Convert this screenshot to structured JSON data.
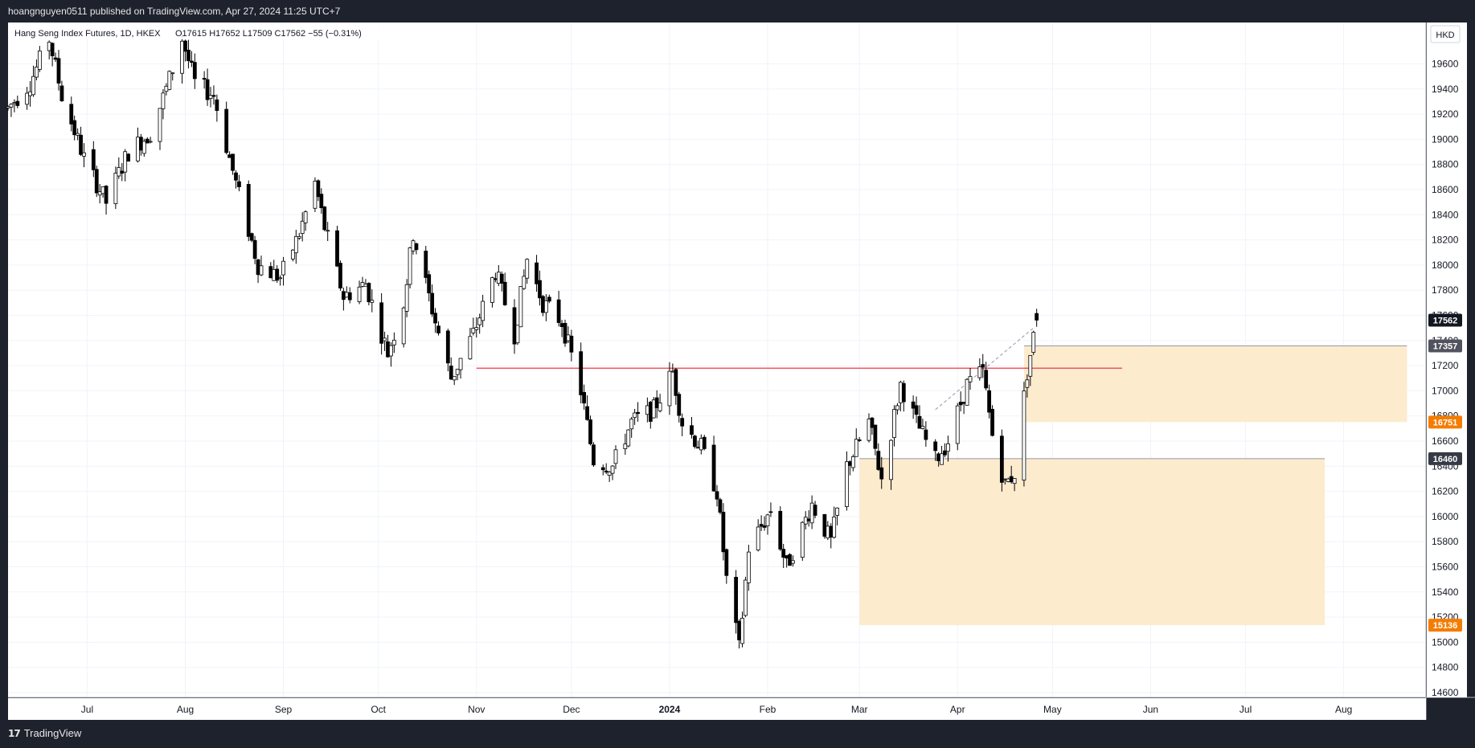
{
  "header": {
    "published_text": "hoangnguyen0511 published on TradingView.com, Apr 27, 2024 11:25 UTC+7"
  },
  "footer": {
    "brand_icon": "tradingview-logo-icon",
    "brand_text": "TradingView"
  },
  "legend": {
    "symbol": "Hang Seng Index Futures, 1D, HKEX",
    "ohlc": "O17615  H17652  L17509  C17562  −55 (−0.31%)"
  },
  "currency": "HKD",
  "chart_data": {
    "type": "candlestick",
    "title": "Hang Seng Index Futures, 1D, HKEX",
    "ylim": [
      14600,
      19800
    ],
    "yticks": [
      14600,
      14800,
      15000,
      15200,
      15400,
      15600,
      15800,
      16000,
      16200,
      16400,
      16600,
      16800,
      17000,
      17200,
      17400,
      17600,
      17800,
      18000,
      18200,
      18400,
      18600,
      18800,
      19000,
      19200,
      19400,
      19600
    ],
    "xticks": [
      {
        "label": "Jul",
        "bold": false
      },
      {
        "label": "Aug",
        "bold": false
      },
      {
        "label": "Sep",
        "bold": false
      },
      {
        "label": "Oct",
        "bold": false
      },
      {
        "label": "Nov",
        "bold": false
      },
      {
        "label": "Dec",
        "bold": false
      },
      {
        "label": "2024",
        "bold": true
      },
      {
        "label": "Feb",
        "bold": false
      },
      {
        "label": "Mar",
        "bold": false
      },
      {
        "label": "Apr",
        "bold": false
      },
      {
        "label": "May",
        "bold": false
      },
      {
        "label": "Jun",
        "bold": false
      },
      {
        "label": "Jul",
        "bold": false
      },
      {
        "label": "Aug",
        "bold": false
      }
    ],
    "xtick_dates": [
      "2023-07-01",
      "2023-08-01",
      "2023-09-01",
      "2023-10-01",
      "2023-11-01",
      "2023-12-01",
      "2024-01-01",
      "2024-02-01",
      "2024-03-01",
      "2024-04-01",
      "2024-05-01",
      "2024-06-01",
      "2024-07-01",
      "2024-08-01"
    ],
    "date_range": [
      "2023-06-06",
      "2024-08-27"
    ],
    "price_path": [
      [
        "2023-06-06",
        19250
      ],
      [
        "2023-06-13",
        19450
      ],
      [
        "2023-06-19",
        19800
      ],
      [
        "2023-06-23",
        19350
      ],
      [
        "2023-06-30",
        18850
      ],
      [
        "2023-07-07",
        18500
      ],
      [
        "2023-07-14",
        18900
      ],
      [
        "2023-07-21",
        19050
      ],
      [
        "2023-07-26",
        19400
      ],
      [
        "2023-07-31",
        19800
      ],
      [
        "2023-08-04",
        19450
      ],
      [
        "2023-08-10",
        19350
      ],
      [
        "2023-08-17",
        18650
      ],
      [
        "2023-08-24",
        18000
      ],
      [
        "2023-08-31",
        17900
      ],
      [
        "2023-09-06",
        18250
      ],
      [
        "2023-09-11",
        18650
      ],
      [
        "2023-09-14",
        18300
      ],
      [
        "2023-09-20",
        17750
      ],
      [
        "2023-09-27",
        17850
      ],
      [
        "2023-10-04",
        17300
      ],
      [
        "2023-10-09",
        17700
      ],
      [
        "2023-10-12",
        18250
      ],
      [
        "2023-10-19",
        17550
      ],
      [
        "2023-10-24",
        17100
      ],
      [
        "2023-10-31",
        17450
      ],
      [
        "2023-11-07",
        17950
      ],
      [
        "2023-11-13",
        17450
      ],
      [
        "2023-11-17",
        18050
      ],
      [
        "2023-11-22",
        17700
      ],
      [
        "2023-11-28",
        17550
      ],
      [
        "2023-12-04",
        17000
      ],
      [
        "2023-12-08",
        16450
      ],
      [
        "2023-12-14",
        16400
      ],
      [
        "2023-12-20",
        16750
      ],
      [
        "2023-12-27",
        16850
      ],
      [
        "2024-01-02",
        17150
      ],
      [
        "2024-01-05",
        16750
      ],
      [
        "2024-01-11",
        16550
      ],
      [
        "2024-01-16",
        16200
      ],
      [
        "2024-01-19",
        15500
      ],
      [
        "2024-01-23",
        14950
      ],
      [
        "2024-01-26",
        15750
      ],
      [
        "2024-02-02",
        16050
      ],
      [
        "2024-02-07",
        15600
      ],
      [
        "2024-02-15",
        16100
      ],
      [
        "2024-02-21",
        15800
      ],
      [
        "2024-02-26",
        16400
      ],
      [
        "2024-03-04",
        16750
      ],
      [
        "2024-03-08",
        16300
      ],
      [
        "2024-03-14",
        17050
      ],
      [
        "2024-03-19",
        16750
      ],
      [
        "2024-03-25",
        16450
      ],
      [
        "2024-03-29",
        16600
      ],
      [
        "2024-04-04",
        17050
      ],
      [
        "2024-04-09",
        17150
      ],
      [
        "2024-04-12",
        16650
      ],
      [
        "2024-04-16",
        16250
      ],
      [
        "2024-04-19",
        16350
      ],
      [
        "2024-04-23",
        17150
      ],
      [
        "2024-04-26",
        17562
      ]
    ],
    "horizontal_line": {
      "price": 17180,
      "from": "2023-11-01",
      "to": "2024-05-23",
      "color": "#f23645"
    },
    "trend_line": {
      "from": [
        "2024-03-25",
        16850
      ],
      "to": [
        "2024-04-25",
        17500
      ],
      "style": "dashed"
    },
    "zones": [
      {
        "top": 17357,
        "bottom": 16751,
        "from": "2024-04-22",
        "to": "2024-08-21",
        "color": "#fdebce"
      },
      {
        "top": 16460,
        "bottom": 15136,
        "from": "2024-03-01",
        "to": "2024-07-26",
        "color": "#fdebce"
      }
    ],
    "price_labels": [
      {
        "text": "17562",
        "price": 17562,
        "bg": "#131722",
        "fg": "#ffffff"
      },
      {
        "text": "17357",
        "price": 17357,
        "bg": "#50535e",
        "fg": "#ffffff"
      },
      {
        "text": "16751",
        "price": 16751,
        "bg": "#f57c00",
        "fg": "#ffffff"
      },
      {
        "text": "16460",
        "price": 16460,
        "bg": "#363a45",
        "fg": "#ffffff"
      },
      {
        "text": "15136",
        "price": 15136,
        "bg": "#f57c00",
        "fg": "#ffffff"
      }
    ],
    "colors": {
      "up_body": "#ffffff",
      "down_body": "#000000",
      "wick": "#000000",
      "grid": "#f0f3fa"
    }
  }
}
